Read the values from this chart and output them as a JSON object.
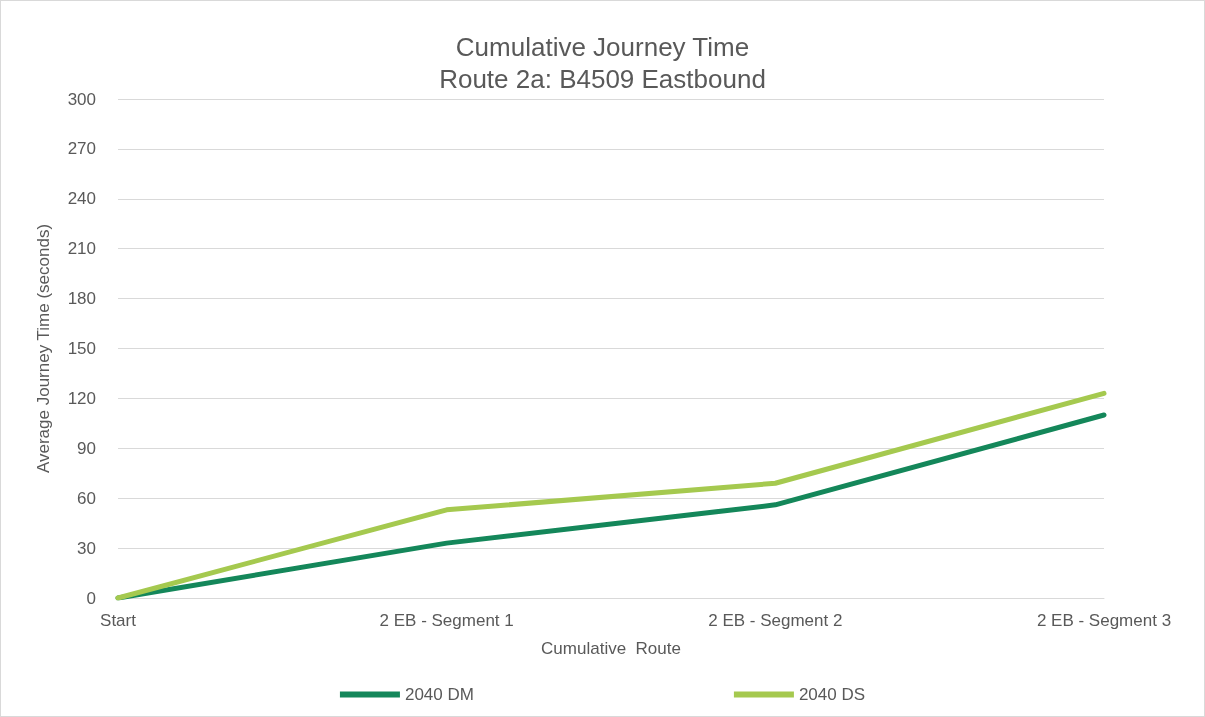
{
  "chart_data": {
    "type": "line",
    "title": "Cumulative Journey Time",
    "subtitle": "Route 2a: B4509 Eastbound",
    "xlabel": "Cumulative  Route",
    "ylabel": "Average Journey Time (seconds)",
    "categories": [
      "Start",
      "2 EB - Segment 1",
      "2 EB - Segment 2",
      "2 EB - Segment 3"
    ],
    "series": [
      {
        "name": "2040 DM",
        "color": "#14875a",
        "values": [
          0,
          33,
          56,
          110
        ]
      },
      {
        "name": "2040 DS",
        "color": "#a5c94f",
        "values": [
          0,
          53,
          69,
          123
        ]
      }
    ],
    "ylim": [
      0,
      300
    ],
    "yticks": [
      0,
      30,
      60,
      90,
      120,
      150,
      180,
      210,
      240,
      270,
      300
    ],
    "grid": "y",
    "legend": "bottom",
    "marker": "none",
    "line_style": "solid"
  }
}
